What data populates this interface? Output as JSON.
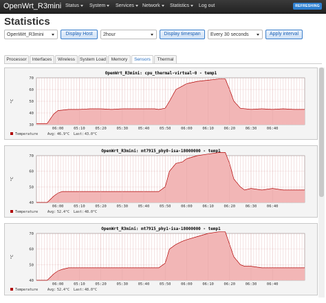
{
  "nav": {
    "brand": "OpenWrt_R3mini",
    "menu": [
      "Status",
      "System",
      "Services",
      "Network",
      "Statistics"
    ],
    "logout": "Log out",
    "badge": "REFRESHING"
  },
  "page_title": "Statistics",
  "controls": {
    "host_select": "OpenWrt_R3mini",
    "display_host": "Display Host",
    "timespan_select": "2hour",
    "display_timespan": "Display timespan",
    "interval_select": "Every 30 seconds",
    "apply_interval": "Apply interval"
  },
  "tabs": [
    "Processor",
    "Interfaces",
    "Wireless",
    "System Load",
    "Memory",
    "Sensors",
    "Thermal"
  ],
  "active_tab": "Sensors",
  "colors": {
    "fill": "#f2b6b6",
    "line": "#b00000",
    "grid": "#d9a0a0",
    "accent": "#2f80d0"
  },
  "chart_data": [
    {
      "type": "area",
      "title": "OpenWrt_R3mini: cpu_thermal-virtual-0 - temp1",
      "ylabel": "°C",
      "ylim": [
        30,
        70
      ],
      "yticks": [
        "30",
        "40",
        "50",
        "60",
        "70"
      ],
      "xticks": [
        "06:00",
        "05:10",
        "05:20",
        "05:30",
        "05:40",
        "05:50",
        "06:00",
        "06:10",
        "06:20",
        "06:30",
        "06:40"
      ],
      "x": [
        0,
        5,
        8,
        10,
        15,
        20,
        25,
        30,
        35,
        40,
        45,
        50,
        55,
        57,
        60,
        62,
        65,
        68,
        70,
        75,
        80,
        85,
        88,
        90,
        92,
        95,
        100,
        105,
        110,
        115,
        120,
        125
      ],
      "values": [
        31,
        31,
        39,
        42,
        43,
        43,
        43.5,
        43.5,
        43,
        43.5,
        43.5,
        43.5,
        43.5,
        43,
        44,
        50,
        60,
        63,
        65,
        67,
        68,
        69,
        69,
        60,
        50,
        44,
        43,
        43.5,
        43,
        43.5,
        43,
        43
      ],
      "legend": "Temperature",
      "avg_label": "Avg:",
      "avg": "46.9°C",
      "last_label": "Last:",
      "last": "43.0°C"
    },
    {
      "type": "area",
      "title": "OpenWrt_R3mini: mt7915_phy0-isa-18000000 - temp1",
      "ylabel": "°C",
      "ylim": [
        40,
        70
      ],
      "yticks": [
        "40",
        "50",
        "60",
        "70"
      ],
      "xticks": [
        "06:00",
        "05:10",
        "05:20",
        "05:30",
        "05:40",
        "05:50",
        "06:00",
        "06:10",
        "06:20",
        "06:30",
        "06:40"
      ],
      "x": [
        0,
        5,
        8,
        10,
        12,
        15,
        20,
        30,
        40,
        50,
        55,
        57,
        60,
        62,
        65,
        68,
        70,
        75,
        80,
        85,
        88,
        90,
        92,
        95,
        97,
        100,
        105,
        110,
        115,
        120,
        125
      ],
      "values": [
        40,
        40,
        44,
        46,
        47,
        47,
        47,
        47,
        47,
        47,
        47,
        47,
        50,
        60,
        65,
        66,
        68,
        70,
        71,
        72,
        72,
        65,
        55,
        50,
        48,
        49,
        48,
        49,
        48,
        48,
        48
      ],
      "legend": "Temperature",
      "avg_label": "Avg:",
      "avg": "52.4°C",
      "last_label": "Last:",
      "last": "48.0°C"
    },
    {
      "type": "area",
      "title": "OpenWrt_R3mini: mt7915_phy1-isa-18000000 - temp1",
      "ylabel": "°C",
      "ylim": [
        40,
        70
      ],
      "yticks": [
        "40",
        "50",
        "60",
        "70"
      ],
      "xticks": [
        "06:00",
        "05:10",
        "05:20",
        "05:30",
        "05:40",
        "05:50",
        "06:00",
        "06:10",
        "06:20",
        "06:30",
        "06:40"
      ],
      "x": [
        0,
        5,
        8,
        10,
        12,
        15,
        20,
        30,
        40,
        50,
        55,
        57,
        60,
        62,
        65,
        68,
        70,
        75,
        80,
        85,
        88,
        90,
        92,
        95,
        97,
        100,
        105,
        110,
        115,
        120,
        125
      ],
      "values": [
        40,
        40,
        44,
        46,
        47,
        48,
        48,
        48,
        48,
        48,
        48,
        48,
        51,
        60,
        63,
        65,
        66,
        68,
        70,
        71,
        71,
        63,
        55,
        50,
        49,
        49,
        48,
        48,
        48,
        48,
        48
      ],
      "legend": "Temperature",
      "avg_label": "Avg:",
      "avg": "52.4°C",
      "last_label": "Last:",
      "last": "48.0°C"
    }
  ]
}
